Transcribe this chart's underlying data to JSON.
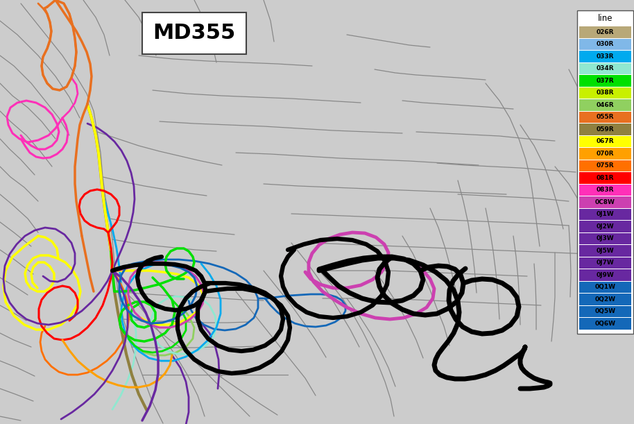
{
  "title": "MD355",
  "background_color": "#cccccc",
  "legend_title": "line",
  "legend_entries": [
    {
      "label": "026R",
      "color": "#b8a878"
    },
    {
      "label": "030R",
      "color": "#80b8e8"
    },
    {
      "label": "033R",
      "color": "#00aaee"
    },
    {
      "label": "034R",
      "color": "#90e8d0"
    },
    {
      "label": "037R",
      "color": "#00e000"
    },
    {
      "label": "038R",
      "color": "#c8f000"
    },
    {
      "label": "046R",
      "color": "#90d060"
    },
    {
      "label": "055R",
      "color": "#e87020"
    },
    {
      "label": "059R",
      "color": "#908040"
    },
    {
      "label": "067R",
      "color": "#ffff00"
    },
    {
      "label": "070R",
      "color": "#ffa000"
    },
    {
      "label": "075R",
      "color": "#ff7000"
    },
    {
      "label": "081R",
      "color": "#ff0000"
    },
    {
      "label": "083R",
      "color": "#ff30b8"
    },
    {
      "label": "0C8W",
      "color": "#cc40b0"
    },
    {
      "label": "0J1W",
      "color": "#6828a0"
    },
    {
      "label": "0J2W",
      "color": "#6828a0"
    },
    {
      "label": "0J3W",
      "color": "#6828a0"
    },
    {
      "label": "0J5W",
      "color": "#6828a0"
    },
    {
      "label": "0J7W",
      "color": "#6828a0"
    },
    {
      "label": "0J9W",
      "color": "#6828a0"
    },
    {
      "label": "0Q1W",
      "color": "#1468b8"
    },
    {
      "label": "0Q2W",
      "color": "#1468b8"
    },
    {
      "label": "0Q5W",
      "color": "#1468b8"
    },
    {
      "label": "0Q6W",
      "color": "#1468b8"
    }
  ],
  "figsize": [
    9.14,
    6.11
  ],
  "dpi": 100
}
